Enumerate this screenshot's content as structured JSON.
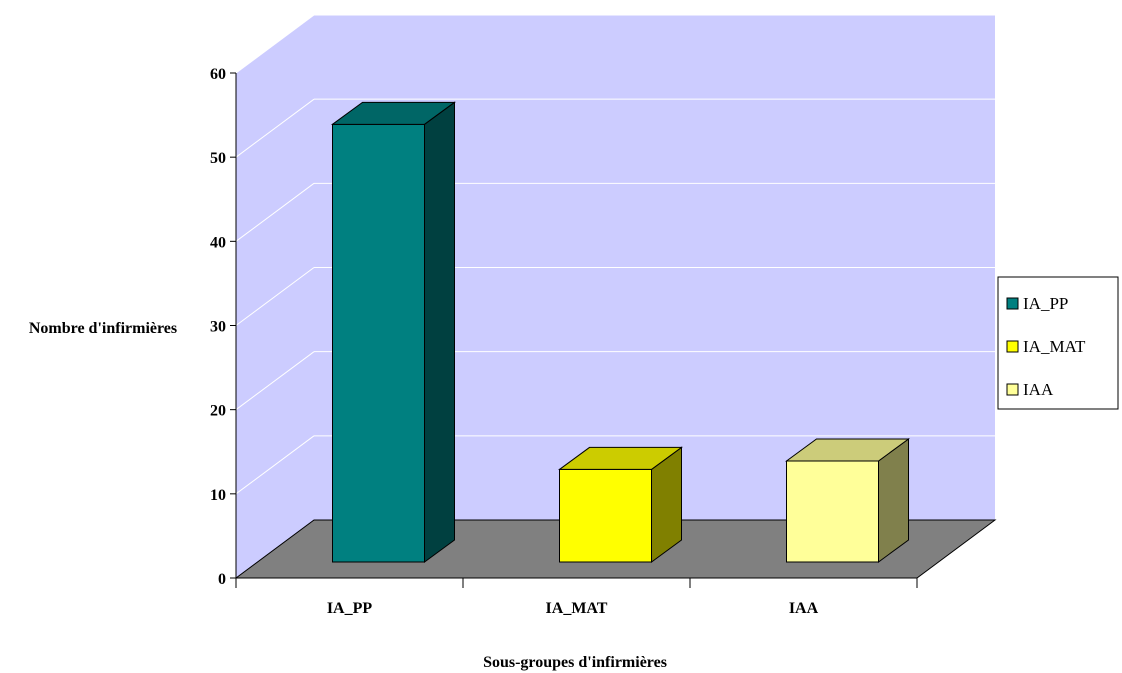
{
  "chart_data": {
    "type": "bar",
    "style": "3d-column",
    "categories": [
      "IA_PP",
      "IA_MAT",
      "IAA"
    ],
    "values": [
      52,
      11,
      12
    ],
    "xlabel": "Sous-groupes d'infirmières",
    "ylabel": "Nombre d'infirmières",
    "ylim": [
      0,
      60
    ],
    "yticks": [
      0,
      10,
      20,
      30,
      40,
      50,
      60
    ],
    "grid": true,
    "legend": {
      "placement": "right",
      "entries": [
        "IA_PP",
        "IA_MAT",
        "IAA"
      ]
    },
    "colors": {
      "wall": "#ccccff",
      "floor": "#808080",
      "bars": [
        {
          "front": "#008080",
          "side": "#004040",
          "top": "#006666"
        },
        {
          "front": "#ffff00",
          "side": "#808000",
          "top": "#cccc00"
        },
        {
          "front": "#ffff99",
          "side": "#80804c",
          "top": "#cccc7a"
        }
      ]
    }
  }
}
